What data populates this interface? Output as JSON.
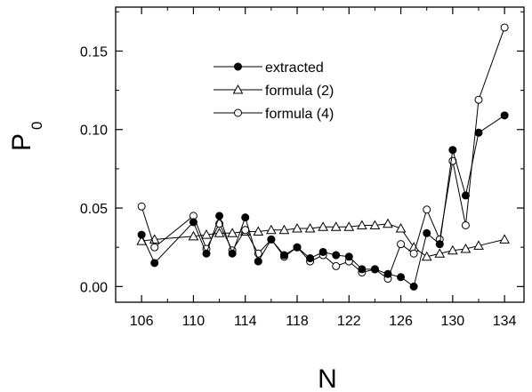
{
  "chart_data": {
    "type": "line",
    "xlabel": "N",
    "ylabel": "P",
    "ylabel_subscript": "0",
    "xlim": [
      104,
      135.5
    ],
    "ylim": [
      -0.01,
      0.178
    ],
    "xticks": [
      106,
      110,
      114,
      118,
      122,
      126,
      130,
      134
    ],
    "xtick_labels": [
      "106",
      "110",
      "114",
      "118",
      "122",
      "126",
      "130",
      "134"
    ],
    "yticks": [
      0.0,
      0.05,
      0.1,
      0.15
    ],
    "ytick_labels": [
      "0.00",
      "0.05",
      "0.10",
      "0.15"
    ],
    "grid": false,
    "legend_position": "top-left",
    "series": [
      {
        "name": "extracted",
        "marker": "filled-circle",
        "color": "#000000",
        "x": [
          106,
          107,
          110,
          111,
          112,
          113,
          114,
          115,
          116,
          117,
          118,
          119,
          120,
          121,
          122,
          123,
          124,
          125,
          126,
          127,
          128,
          129,
          130,
          131,
          132,
          134
        ],
        "y": [
          0.033,
          0.015,
          0.041,
          0.021,
          0.045,
          0.021,
          0.044,
          0.016,
          0.03,
          0.02,
          0.025,
          0.018,
          0.022,
          0.02,
          0.019,
          0.011,
          0.011,
          0.008,
          0.006,
          0.0,
          0.034,
          0.027,
          0.087,
          0.058,
          0.098,
          0.109
        ]
      },
      {
        "name": "formula (2)",
        "marker": "open-triangle",
        "color": "#000000",
        "x": [
          106,
          107,
          110,
          111,
          112,
          113,
          114,
          115,
          116,
          117,
          118,
          119,
          120,
          121,
          122,
          123,
          124,
          125,
          126,
          127,
          128,
          129,
          130,
          131,
          132,
          134
        ],
        "y": [
          0.029,
          0.03,
          0.032,
          0.033,
          0.034,
          0.034,
          0.035,
          0.035,
          0.036,
          0.036,
          0.037,
          0.037,
          0.038,
          0.038,
          0.038,
          0.039,
          0.039,
          0.04,
          0.037,
          0.025,
          0.019,
          0.021,
          0.023,
          0.024,
          0.026,
          0.03
        ]
      },
      {
        "name": "formula (4)",
        "marker": "open-circle",
        "color": "#000000",
        "x": [
          106,
          107,
          110,
          111,
          112,
          113,
          114,
          115,
          116,
          117,
          118,
          119,
          120,
          121,
          122,
          123,
          124,
          125,
          126,
          127,
          128,
          129,
          130,
          131,
          132,
          134
        ],
        "y": [
          0.051,
          0.025,
          0.045,
          0.024,
          0.04,
          0.023,
          0.036,
          0.021,
          0.03,
          0.019,
          0.025,
          0.016,
          0.02,
          0.013,
          0.016,
          0.009,
          0.011,
          0.005,
          0.027,
          0.021,
          0.049,
          0.03,
          0.08,
          0.039,
          0.119,
          0.165
        ]
      }
    ]
  }
}
